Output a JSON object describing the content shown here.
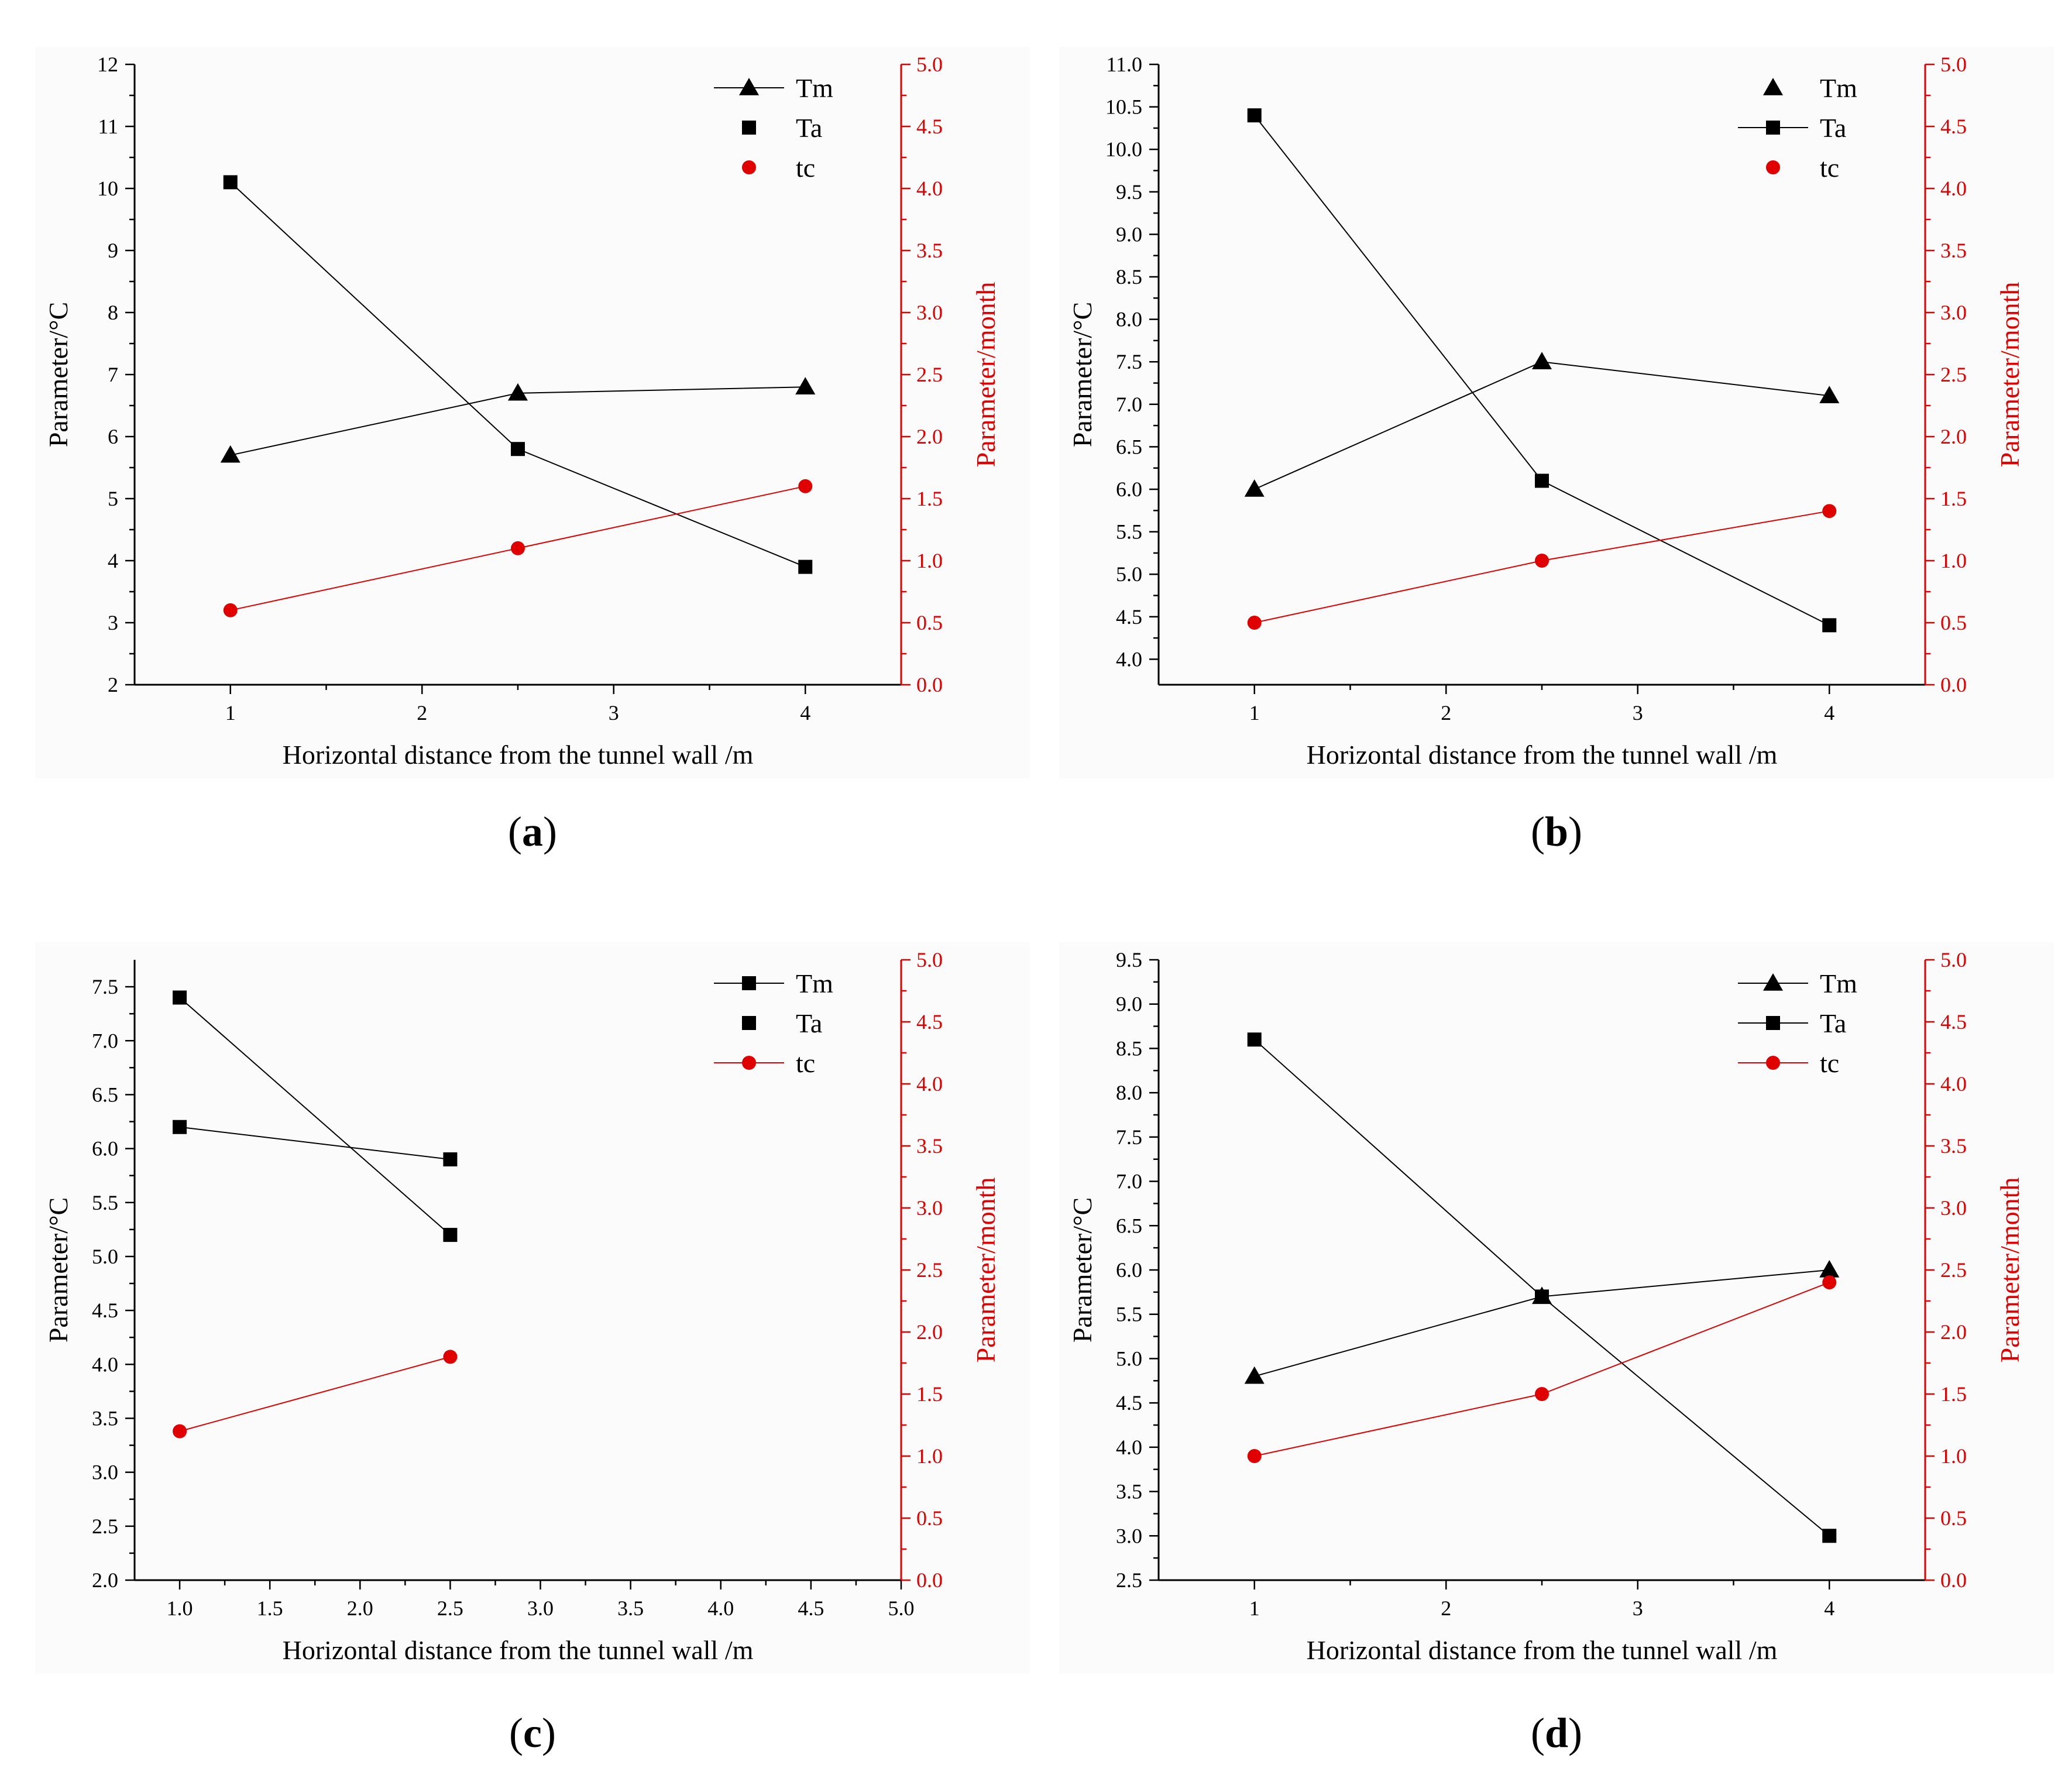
{
  "chart_data": [
    {
      "panel": "a",
      "type": "line",
      "xlabel": "Horizontal distance from the tunnel wall /m",
      "ylabel_left": "Parameter/°C",
      "ylabel_right": "Parameter/month",
      "xlim": [
        0.5,
        4.5
      ],
      "x_ticks": [
        1,
        2,
        3,
        4
      ],
      "x_tick_labels": [
        "1",
        "2",
        "3",
        "4"
      ],
      "ylim_left": [
        2,
        12
      ],
      "y_left_ticks": [
        2,
        3,
        4,
        5,
        6,
        7,
        8,
        9,
        10,
        11,
        12
      ],
      "y_left_tick_labels": [
        "2",
        "3",
        "4",
        "5",
        "6",
        "7",
        "8",
        "9",
        "10",
        "11",
        "12"
      ],
      "ylim_right": [
        0,
        5
      ],
      "y_right_ticks": [
        0,
        0.5,
        1,
        1.5,
        2,
        2.5,
        3,
        3.5,
        4,
        4.5,
        5
      ],
      "y_right_tick_labels": [
        "0.0",
        "0.5",
        "1.0",
        "1.5",
        "2.0",
        "2.5",
        "3.0",
        "3.5",
        "4.0",
        "4.5",
        "5.0"
      ],
      "series": [
        {
          "name": "Tm",
          "axis": "left",
          "marker": "triangle",
          "color": "#000000",
          "x": [
            1,
            2.5,
            4
          ],
          "values": [
            5.7,
            6.7,
            6.8
          ],
          "legend_marker": "triangle",
          "legend_line": true
        },
        {
          "name": "Ta",
          "axis": "left",
          "marker": "square",
          "color": "#000000",
          "x": [
            1,
            2.5,
            4
          ],
          "values": [
            10.1,
            5.8,
            3.9
          ],
          "legend_marker": "square",
          "legend_line": false
        },
        {
          "name": "tc",
          "axis": "right",
          "marker": "circle",
          "color": "#e00000",
          "x": [
            1,
            2.5,
            4
          ],
          "values": [
            0.6,
            1.1,
            1.6
          ],
          "legend_marker": "circle",
          "legend_line": false
        }
      ],
      "caption_letter": "a"
    },
    {
      "panel": "b",
      "type": "line",
      "xlabel": "Horizontal distance from the tunnel wall /m",
      "ylabel_left": "Parameter/°C",
      "ylabel_right": "Parameter/month",
      "xlim": [
        0.5,
        4.5
      ],
      "x_ticks": [
        1,
        2,
        3,
        4
      ],
      "x_tick_labels": [
        "1",
        "2",
        "3",
        "4"
      ],
      "ylim_left": [
        3.7,
        11
      ],
      "y_left_ticks": [
        4,
        4.5,
        5,
        5.5,
        6,
        6.5,
        7,
        7.5,
        8,
        8.5,
        9,
        9.5,
        10,
        10.5,
        11
      ],
      "y_left_tick_labels": [
        "4.0",
        "4.5",
        "5.0",
        "5.5",
        "6.0",
        "6.5",
        "7.0",
        "7.5",
        "8.0",
        "8.5",
        "9.0",
        "9.5",
        "10.0",
        "10.5",
        "11.0"
      ],
      "ylim_right": [
        0,
        5
      ],
      "y_right_ticks": [
        0,
        0.5,
        1,
        1.5,
        2,
        2.5,
        3,
        3.5,
        4,
        4.5,
        5
      ],
      "y_right_tick_labels": [
        "0.0",
        "0.5",
        "1.0",
        "1.5",
        "2.0",
        "2.5",
        "3.0",
        "3.5",
        "4.0",
        "4.5",
        "5.0"
      ],
      "series": [
        {
          "name": "Tm",
          "axis": "left",
          "marker": "triangle",
          "color": "#000000",
          "x": [
            1,
            2.5,
            4
          ],
          "values": [
            6.0,
            7.5,
            7.1
          ],
          "legend_marker": "triangle",
          "legend_line": false
        },
        {
          "name": "Ta",
          "axis": "left",
          "marker": "square",
          "color": "#000000",
          "x": [
            1,
            2.5,
            4
          ],
          "values": [
            10.4,
            6.1,
            4.4
          ],
          "legend_marker": "square",
          "legend_line": true
        },
        {
          "name": "tc",
          "axis": "right",
          "marker": "circle",
          "color": "#e00000",
          "x": [
            1,
            2.5,
            4
          ],
          "values": [
            0.5,
            1.0,
            1.4
          ],
          "legend_marker": "circle",
          "legend_line": false
        }
      ],
      "caption_letter": "b"
    },
    {
      "panel": "c",
      "type": "line",
      "xlabel": "Horizontal distance from the tunnel wall /m",
      "ylabel_left": "Parameter/°C",
      "ylabel_right": "Parameter/month",
      "xlim": [
        0.75,
        5.0
      ],
      "x_ticks": [
        1.0,
        1.5,
        2.0,
        2.5,
        3.0,
        3.5,
        4.0,
        4.5,
        5.0
      ],
      "x_tick_labels": [
        "1.0",
        "1.5",
        "2.0",
        "2.5",
        "3.0",
        "3.5",
        "4.0",
        "4.5",
        "5.0"
      ],
      "ylim_left": [
        2.0,
        7.75
      ],
      "y_left_ticks": [
        2.0,
        2.5,
        3.0,
        3.5,
        4.0,
        4.5,
        5.0,
        5.5,
        6.0,
        6.5,
        7.0,
        7.5
      ],
      "y_left_tick_labels": [
        "2.0",
        "2.5",
        "3.0",
        "3.5",
        "4.0",
        "4.5",
        "5.0",
        "5.5",
        "6.0",
        "6.5",
        "7.0",
        "7.5"
      ],
      "ylim_right": [
        0,
        5
      ],
      "y_right_ticks": [
        0,
        0.5,
        1,
        1.5,
        2,
        2.5,
        3,
        3.5,
        4,
        4.5,
        5
      ],
      "y_right_tick_labels": [
        "0.0",
        "0.5",
        "1.0",
        "1.5",
        "2.0",
        "2.5",
        "3.0",
        "3.5",
        "4.0",
        "4.5",
        "5.0"
      ],
      "series": [
        {
          "name": "Tm",
          "axis": "left",
          "marker": "square",
          "color": "#000000",
          "x": [
            1.0,
            2.5
          ],
          "values": [
            6.2,
            5.9
          ],
          "legend_marker": "square",
          "legend_line": true
        },
        {
          "name": "Ta",
          "axis": "left",
          "marker": "square",
          "color": "#000000",
          "x": [
            1.0,
            2.5
          ],
          "values": [
            7.4,
            5.2
          ],
          "legend_marker": "square",
          "legend_line": false
        },
        {
          "name": "tc",
          "axis": "right",
          "marker": "circle",
          "color": "#e00000",
          "x": [
            1.0,
            2.5
          ],
          "values": [
            1.2,
            1.8
          ],
          "legend_marker": "circle",
          "legend_line": true
        }
      ],
      "caption_letter": "c"
    },
    {
      "panel": "d",
      "type": "line",
      "xlabel": "Horizontal distance from the tunnel wall /m",
      "ylabel_left": "Parameter/°C",
      "ylabel_right": "Parameter/month",
      "xlim": [
        0.5,
        4.5
      ],
      "x_ticks": [
        1,
        2,
        3,
        4
      ],
      "x_tick_labels": [
        "1",
        "2",
        "3",
        "4"
      ],
      "ylim_left": [
        2.5,
        9.5
      ],
      "y_left_ticks": [
        2.5,
        3.0,
        3.5,
        4.0,
        4.5,
        5.0,
        5.5,
        6.0,
        6.5,
        7.0,
        7.5,
        8.0,
        8.5,
        9.0,
        9.5
      ],
      "y_left_tick_labels": [
        "2.5",
        "3.0",
        "3.5",
        "4.0",
        "4.5",
        "5.0",
        "5.5",
        "6.0",
        "6.5",
        "7.0",
        "7.5",
        "8.0",
        "8.5",
        "9.0",
        "9.5"
      ],
      "ylim_right": [
        0,
        5
      ],
      "y_right_ticks": [
        0,
        0.5,
        1,
        1.5,
        2,
        2.5,
        3,
        3.5,
        4,
        4.5,
        5
      ],
      "y_right_tick_labels": [
        "0.0",
        "0.5",
        "1.0",
        "1.5",
        "2.0",
        "2.5",
        "3.0",
        "3.5",
        "4.0",
        "4.5",
        "5.0"
      ],
      "series": [
        {
          "name": "Tm",
          "axis": "left",
          "marker": "triangle",
          "color": "#000000",
          "x": [
            1,
            2.5,
            4
          ],
          "values": [
            4.8,
            5.7,
            6.0
          ],
          "legend_marker": "triangle",
          "legend_line": true
        },
        {
          "name": "Ta",
          "axis": "left",
          "marker": "square",
          "color": "#000000",
          "x": [
            1,
            2.5,
            4
          ],
          "values": [
            8.6,
            5.7,
            3.0
          ],
          "legend_marker": "square",
          "legend_line": true
        },
        {
          "name": "tc",
          "axis": "right",
          "marker": "circle",
          "color": "#e00000",
          "x": [
            1,
            2.5,
            4
          ],
          "values": [
            1.0,
            1.5,
            2.4
          ],
          "legend_marker": "circle",
          "legend_line": true
        }
      ],
      "caption_letter": "d"
    }
  ]
}
